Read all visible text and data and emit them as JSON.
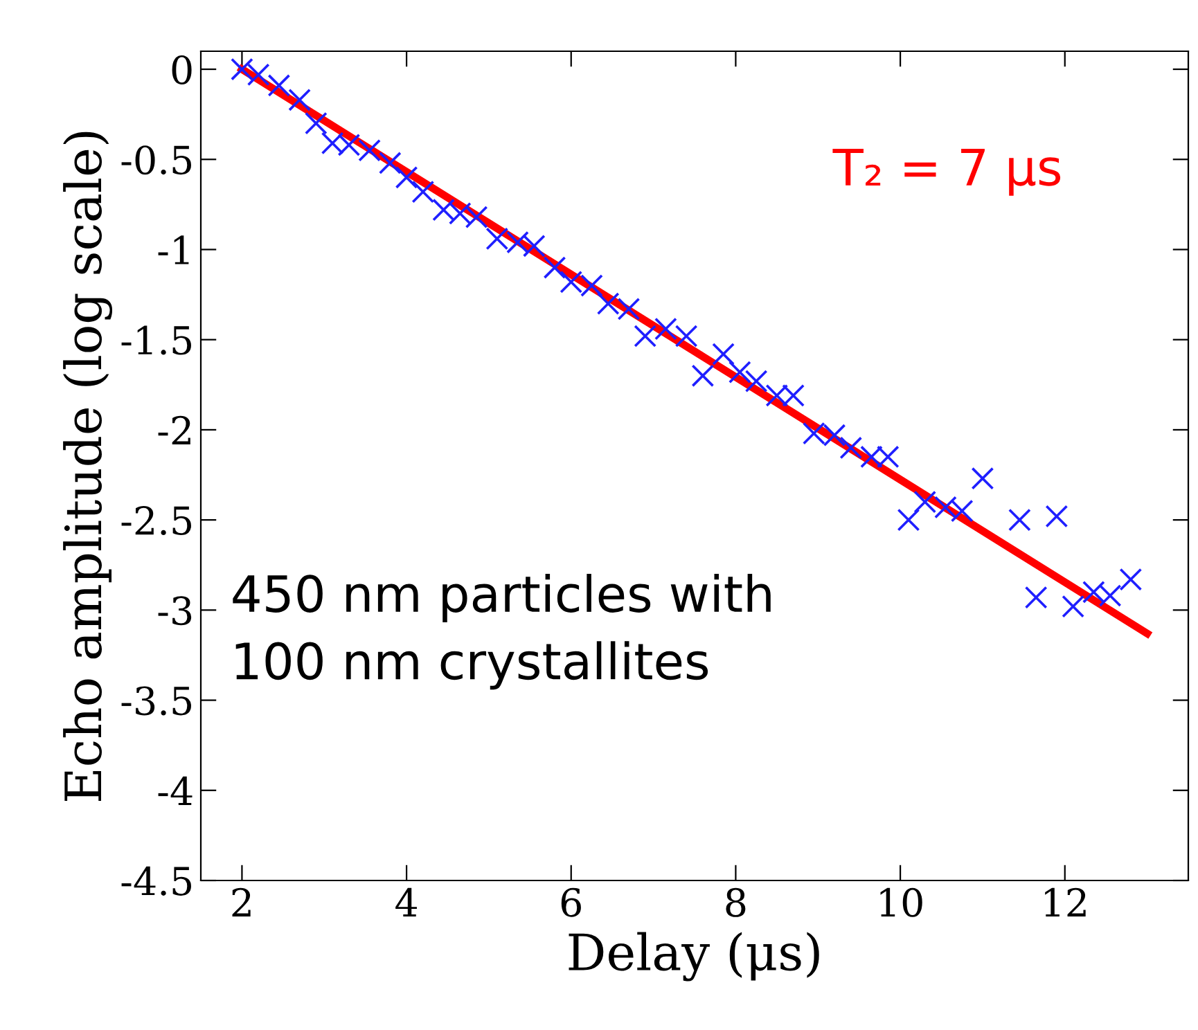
{
  "chart_data": {
    "type": "scatter",
    "xlabel": "Delay (μs)",
    "ylabel": "Echo amplitude (log scale)",
    "xlim": [
      1.5,
      13.5
    ],
    "xticks": [
      2,
      4,
      6,
      8,
      10,
      12
    ],
    "ylim": [
      -4.5,
      0.1
    ],
    "yticks": [
      0,
      -0.5,
      -1,
      -1.5,
      -2,
      -2.5,
      -3,
      -3.5,
      -4,
      -4.5
    ],
    "grid": false,
    "legend": false,
    "annotations": [
      "T₂ = 7 μs",
      "450 nm particles with\n100 nm crystallites"
    ],
    "series": [
      {
        "color": "#1f1fff",
        "marker": "cross",
        "x": [
          2.0,
          2.2,
          2.45,
          2.7,
          2.9,
          3.1,
          3.3,
          3.55,
          3.8,
          4.0,
          4.2,
          4.45,
          4.65,
          4.85,
          5.1,
          5.35,
          5.55,
          5.8,
          6.0,
          6.25,
          6.45,
          6.7,
          6.9,
          7.15,
          7.4,
          7.6,
          7.85,
          8.05,
          8.25,
          8.5,
          8.7,
          8.95,
          9.2,
          9.4,
          9.65,
          9.85,
          10.1,
          10.3,
          10.55,
          10.75,
          11.0,
          11.45,
          11.65,
          11.9,
          12.1,
          12.35,
          12.55,
          12.8
        ],
        "values": [
          0,
          -0.03,
          -0.09,
          -0.17,
          -0.3,
          -0.41,
          -0.42,
          -0.45,
          -0.52,
          -0.6,
          -0.68,
          -0.78,
          -0.8,
          -0.82,
          -0.94,
          -0.96,
          -0.98,
          -1.1,
          -1.18,
          -1.2,
          -1.3,
          -1.33,
          -1.48,
          -1.44,
          -1.48,
          -1.7,
          -1.58,
          -1.68,
          -1.73,
          -1.81,
          -1.81,
          -2.02,
          -2.03,
          -2.1,
          -2.15,
          -2.15,
          -2.5,
          -2.4,
          -2.43,
          -2.45,
          -2.27,
          -2.5,
          -2.93,
          -2.48,
          -2.98,
          -2.9,
          -2.92,
          -2.83
        ]
      },
      {
        "type": "line",
        "color": "#ff0000",
        "line_style": "solid",
        "x": [
          2,
          13
        ],
        "values": [
          0,
          -3.13
        ]
      }
    ]
  }
}
